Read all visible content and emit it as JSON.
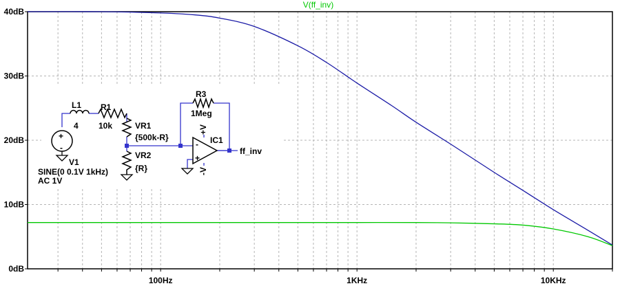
{
  "chart_data": {
    "type": "line",
    "title": "V(ff_inv)",
    "x_scale": "log",
    "xlim": [
      21,
      20000
    ],
    "ylim": [
      0,
      40
    ],
    "y_ticks": [
      0,
      10,
      20,
      30,
      40
    ],
    "y_tick_labels": [
      "0dB",
      "10dB",
      "20dB",
      "30dB",
      "40dB"
    ],
    "x_ticks": [
      100,
      1000,
      10000
    ],
    "x_tick_labels": [
      "100Hz",
      "1KHz",
      "10KHz"
    ],
    "grid": true,
    "series": [
      {
        "color": "#1a1aa6",
        "x": [
          21,
          50,
          100,
          150,
          200,
          300,
          500,
          700,
          1000,
          1500,
          2000,
          3000,
          5000,
          7000,
          10000,
          15000,
          20000
        ],
        "y": [
          40,
          40,
          39.8,
          39.5,
          39.0,
          37.7,
          34.7,
          32.1,
          28.9,
          25.4,
          22.8,
          19.4,
          15.0,
          12.2,
          9.2,
          6.0,
          3.7
        ]
      },
      {
        "color": "#00c800",
        "x": [
          21,
          100,
          500,
          1000,
          2000,
          3000,
          5000,
          7000,
          10000,
          15000,
          20000
        ],
        "y": [
          7.2,
          7.2,
          7.2,
          7.2,
          7.2,
          7.15,
          7.0,
          6.8,
          6.2,
          5.0,
          3.6
        ]
      }
    ]
  },
  "schematic": {
    "l1_name": "L1",
    "l1_value": "4",
    "r1_name": "R1",
    "r1_value": "10k",
    "vr1_name": "VR1",
    "vr1_value": "{500k-R}",
    "vr2_name": "VR2",
    "vr2_value": "{R}",
    "r3_name": "R3",
    "r3_value": "1Meg",
    "ic1_name": "IC1",
    "v1_name": "V1",
    "v1_value": "SINE(0 0.1V 1kHz)",
    "v1_ac": "AC 1V",
    "out_label": "ff_inv",
    "vpos_label": "+V",
    "vneg_label": "-V",
    "plus_sign": "+",
    "minus_sign": "-"
  }
}
